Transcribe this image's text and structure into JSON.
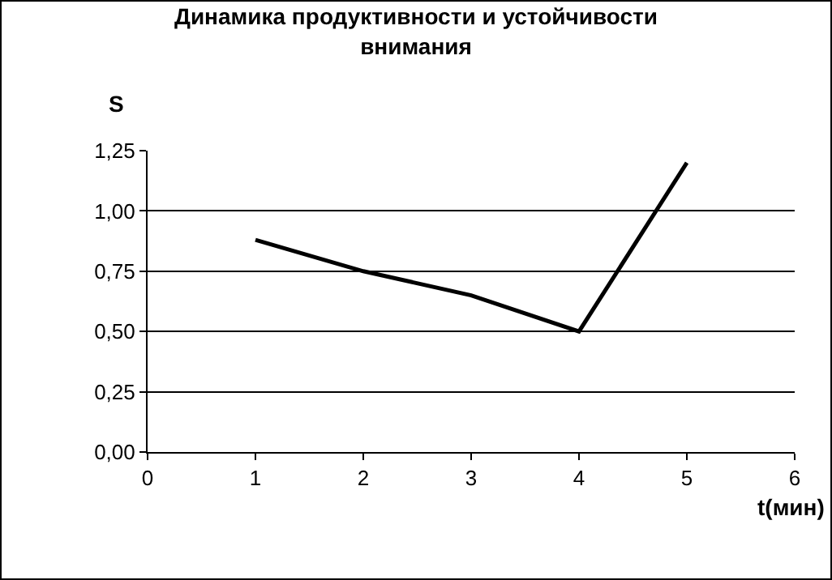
{
  "chart_data": {
    "type": "line",
    "title": "Динамика продуктивности и устойчивости внимания",
    "xlabel": "t(мин)",
    "ylabel": "S",
    "x": [
      1,
      2,
      3,
      4,
      5
    ],
    "series": [
      {
        "color": "#000000",
        "values": [
          0.88,
          0.75,
          0.65,
          0.5,
          1.2
        ]
      }
    ],
    "xlim": [
      0,
      6
    ],
    "xticks": [
      0,
      1,
      2,
      3,
      4,
      5,
      6
    ],
    "ylim": [
      0,
      1.25
    ],
    "yticks": [
      {
        "value": 0,
        "label": "0,00"
      },
      {
        "value": 0.25,
        "label": "0,25"
      },
      {
        "value": 0.5,
        "label": "0,50"
      },
      {
        "value": 0.75,
        "label": "0,75"
      },
      {
        "value": 1,
        "label": "1,00"
      },
      {
        "value": 1.25,
        "label": "1,25"
      }
    ],
    "grid": "y",
    "marker": "none",
    "line_style": "solid"
  }
}
